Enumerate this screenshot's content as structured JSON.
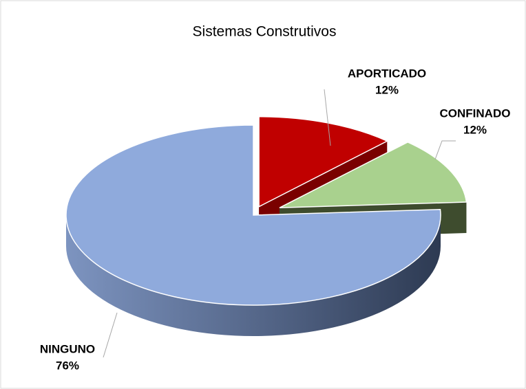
{
  "chart_data": {
    "type": "pie",
    "title": "Sistemas Construtivos",
    "categories": [
      "APORTICADO",
      "CONFINADO",
      "NINGUNO"
    ],
    "values": [
      12,
      12,
      76
    ],
    "value_labels": [
      "12%",
      "12%",
      "76%"
    ],
    "colors": [
      "#c00000",
      "#a9d18e",
      "#8faadc"
    ]
  }
}
